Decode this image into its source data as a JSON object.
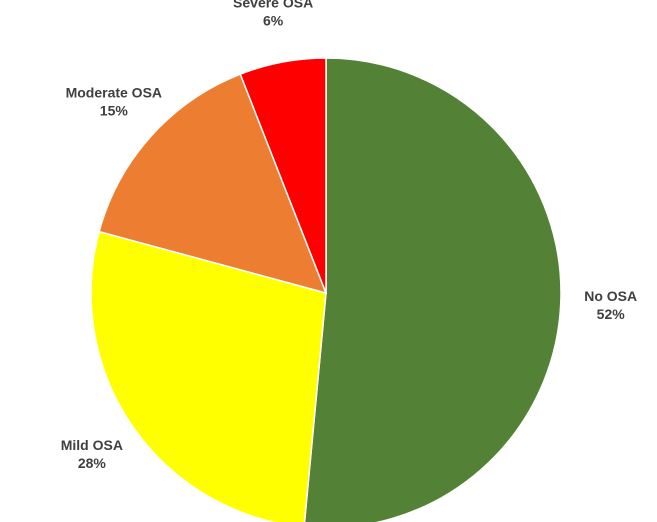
{
  "chart_data": {
    "type": "pie",
    "categories": [
      "No OSA",
      "Mild OSA",
      "Moderate OSA",
      "Severe OSA"
    ],
    "values": [
      52,
      28,
      15,
      6
    ],
    "value_labels": [
      "52%",
      "28%",
      "15%",
      "6%"
    ],
    "colors": [
      "#538135",
      "#ffff00",
      "#ed7d31",
      "#ff0000"
    ]
  }
}
